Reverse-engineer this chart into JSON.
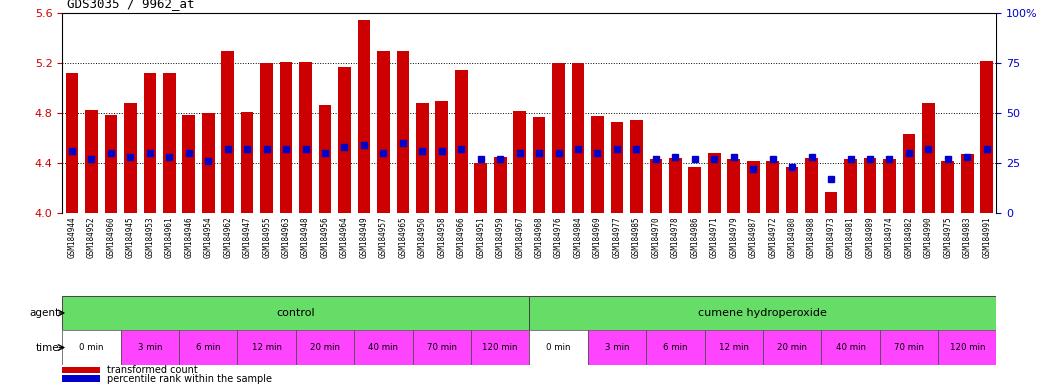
{
  "title": "GDS3035 / 9962_at",
  "bar_color": "#cc0000",
  "blue_color": "#0000cc",
  "ylim": [
    4.0,
    5.6
  ],
  "y_left_ticks": [
    4.0,
    4.4,
    4.8,
    5.2,
    5.6
  ],
  "y_right_ticks": [
    0,
    25,
    50,
    75,
    100
  ],
  "samples": [
    "GSM184944",
    "GSM184952",
    "GSM184960",
    "GSM184945",
    "GSM184953",
    "GSM184961",
    "GSM184946",
    "GSM184954",
    "GSM184962",
    "GSM184947",
    "GSM184955",
    "GSM184963",
    "GSM184948",
    "GSM184956",
    "GSM184964",
    "GSM184949",
    "GSM184957",
    "GSM184965",
    "GSM184950",
    "GSM184958",
    "GSM184966",
    "GSM184951",
    "GSM184959",
    "GSM184967",
    "GSM184968",
    "GSM184976",
    "GSM184984",
    "GSM184969",
    "GSM184977",
    "GSM184985",
    "GSM184970",
    "GSM184978",
    "GSM184986",
    "GSM184971",
    "GSM184979",
    "GSM184987",
    "GSM184972",
    "GSM184980",
    "GSM184988",
    "GSM184973",
    "GSM184981",
    "GSM184989",
    "GSM184974",
    "GSM184982",
    "GSM184990",
    "GSM184975",
    "GSM184983",
    "GSM184991"
  ],
  "bar_values": [
    5.12,
    4.83,
    4.79,
    4.88,
    5.12,
    5.12,
    4.79,
    4.8,
    5.3,
    4.81,
    5.2,
    5.21,
    5.21,
    4.87,
    5.17,
    5.55,
    5.3,
    5.3,
    4.88,
    4.9,
    5.15,
    4.4,
    4.45,
    4.82,
    4.77,
    5.2,
    5.2,
    4.78,
    4.73,
    4.75,
    4.43,
    4.44,
    4.37,
    4.48,
    4.43,
    4.42,
    4.42,
    4.37,
    4.44,
    4.17,
    4.43,
    4.44,
    4.43,
    4.63,
    4.88,
    4.42,
    4.47,
    5.22
  ],
  "percentile_values": [
    31,
    27,
    30,
    28,
    30,
    28,
    30,
    26,
    32,
    32,
    32,
    32,
    32,
    30,
    33,
    34,
    30,
    35,
    31,
    31,
    32,
    27,
    27,
    30,
    30,
    30,
    32,
    30,
    32,
    32,
    27,
    28,
    27,
    27,
    28,
    22,
    27,
    23,
    28,
    17,
    27,
    27,
    27,
    30,
    32,
    27,
    28,
    32
  ],
  "time_labels": [
    "0 min",
    "3 min",
    "6 min",
    "12 min",
    "20 min",
    "40 min",
    "70 min",
    "120 min"
  ],
  "time_bg_colors": [
    "#ffffff",
    "#ff44ff",
    "#ff44ff",
    "#ff44ff",
    "#ff44ff",
    "#ff44ff",
    "#ff44ff",
    "#ff44ff"
  ],
  "agent_green": "#66dd66",
  "tick_bg": "#cccccc",
  "legend_items": [
    {
      "label": "transformed count",
      "color": "#cc0000"
    },
    {
      "label": "percentile rank within the sample",
      "color": "#0000cc"
    }
  ]
}
